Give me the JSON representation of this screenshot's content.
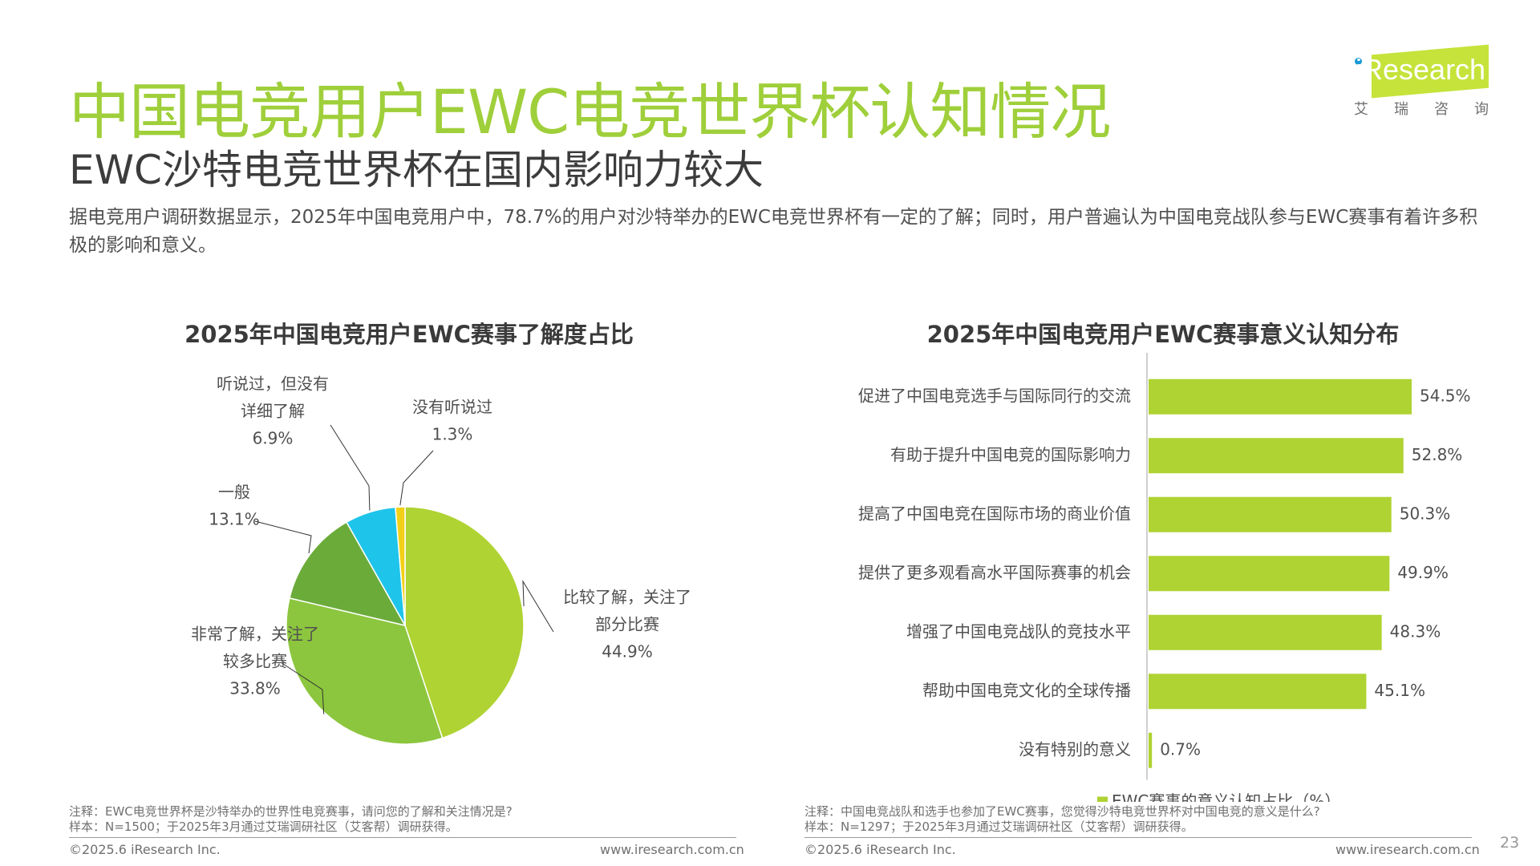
{
  "header": {
    "title": "中国电竞用户EWC电竞世界杯认知情况",
    "subtitle": "EWC沙特电竞世界杯在国内影响力较大",
    "summary": "据电竞用户调研数据显示，2025年中国电竞用户中，78.7%的用户对沙特举办的EWC电竞世界杯有一定的了解；同时，用户普遍认为中国电竞战队参与EWC赛事有着许多积极的影响和意义。"
  },
  "logo": {
    "text": "Research",
    "cn": "艾瑞咨询",
    "colors": {
      "band": "#c5e33a",
      "dot": "#1a9ad6"
    }
  },
  "colors": {
    "accent": "#9fcf3a",
    "bar": "#afd333"
  },
  "chart_data": [
    {
      "type": "pie",
      "title": "2025年中国电竞用户EWC赛事了解度占比",
      "slices": [
        {
          "name_lines": [
            "比较了解，关注了",
            "部分比赛"
          ],
          "value": 44.9,
          "label": "44.9%",
          "color": "#afd333"
        },
        {
          "name_lines": [
            "非常了解，关注了",
            "较多比赛"
          ],
          "value": 33.8,
          "label": "33.8%",
          "color": "#8cc63e"
        },
        {
          "name_lines": [
            "一般"
          ],
          "value": 13.1,
          "label": "13.1%",
          "color": "#6aab3a"
        },
        {
          "name_lines": [
            "听说过，但没有",
            "详细了解"
          ],
          "value": 6.9,
          "label": "6.9%",
          "color": "#1fc4ea"
        },
        {
          "name_lines": [
            "没有听说过"
          ],
          "value": 1.3,
          "label": "1.3%",
          "color": "#f2d017"
        }
      ]
    },
    {
      "type": "bar",
      "orientation": "horizontal",
      "title": "2025年中国电竞用户EWC赛事意义认知分布",
      "categories": [
        "促进了中国电竞选手与国际同行的交流",
        "有助于提升中国电竞的国际影响力",
        "提高了中国电竞在国际市场的商业价值",
        "提供了更多观看高水平国际赛事的机会",
        "增强了中国电竞战队的竞技水平",
        "帮助中国电竞文化的全球传播",
        "没有特别的意义"
      ],
      "series": [
        {
          "name": "EWC赛事的意义认知占比（%）",
          "values": [
            54.5,
            52.8,
            50.3,
            49.9,
            48.3,
            45.1,
            0.7
          ],
          "labels": [
            "54.5%",
            "52.8%",
            "50.3%",
            "49.9%",
            "48.3%",
            "45.1%",
            "0.7%"
          ]
        }
      ],
      "legend": "bottom"
    }
  ],
  "notes": {
    "left_note": "注释：EWC电竞世界杯是沙特举办的世界性电竞赛事，请问您的了解和关注情况是?",
    "left_sample": "样本：N=1500；于2025年3月通过艾瑞调研社区（艾客帮）调研获得。",
    "right_note": "注释：中国电竞战队和选手也参加了EWC赛事，您觉得沙特电竞世界杯对中国电竞的意义是什么?",
    "right_sample": "样本：N=1297；于2025年3月通过艾瑞调研社区（艾客帮）调研获得。"
  },
  "footer": {
    "copyright": "©2025.6 iResearch Inc.",
    "url": "www.iresearch.com.cn",
    "page": "23"
  }
}
